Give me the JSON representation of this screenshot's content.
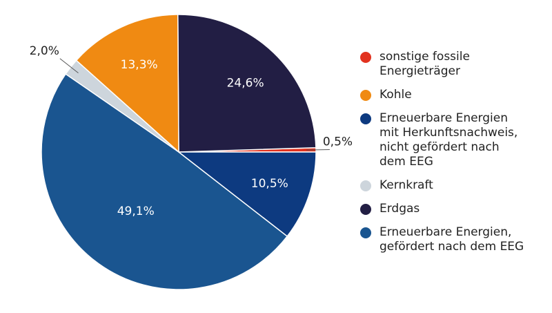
{
  "chart_data": {
    "type": "pie",
    "start_angle_deg": 0,
    "direction": "counterclockwise",
    "slices": [
      {
        "label": "sonstige fossile\nEnergieträger",
        "value": 0.5,
        "value_label": "0,5%",
        "color": "#e2321f",
        "label_inside": false
      },
      {
        "label": "Erdgas",
        "value": 24.6,
        "value_label": "24,6%",
        "color": "#221e44",
        "label_inside": true
      },
      {
        "label": "Kohle",
        "value": 13.3,
        "value_label": "13,3%",
        "color": "#f08a12",
        "label_inside": true
      },
      {
        "label": "Kernkraft",
        "value": 2.0,
        "value_label": "2,0%",
        "color": "#cdd5dc",
        "label_inside": false
      },
      {
        "label": "Erneuerbare Energien,\ngefördert nach dem EEG",
        "value": 49.1,
        "value_label": "49,1%",
        "color": "#1a5590",
        "label_inside": true
      },
      {
        "label": "Erneuerbare Energien\nmit Herkunftsnachweis,\nnicht gefördert nach\ndem EEG",
        "value": 10.5,
        "value_label": "10,5%",
        "color": "#0d3a80",
        "label_inside": true
      }
    ],
    "legend_order": [
      "sonstige fossile\nEnergieträger",
      "Kohle",
      "Erneuerbare Energien\nmit Herkunftsnachweis,\nnicht gefördert nach\ndem EEG",
      "Kernkraft",
      "Erdgas",
      "Erneuerbare Energien,\ngefördert nach dem EEG"
    ],
    "legend_position": "right"
  }
}
